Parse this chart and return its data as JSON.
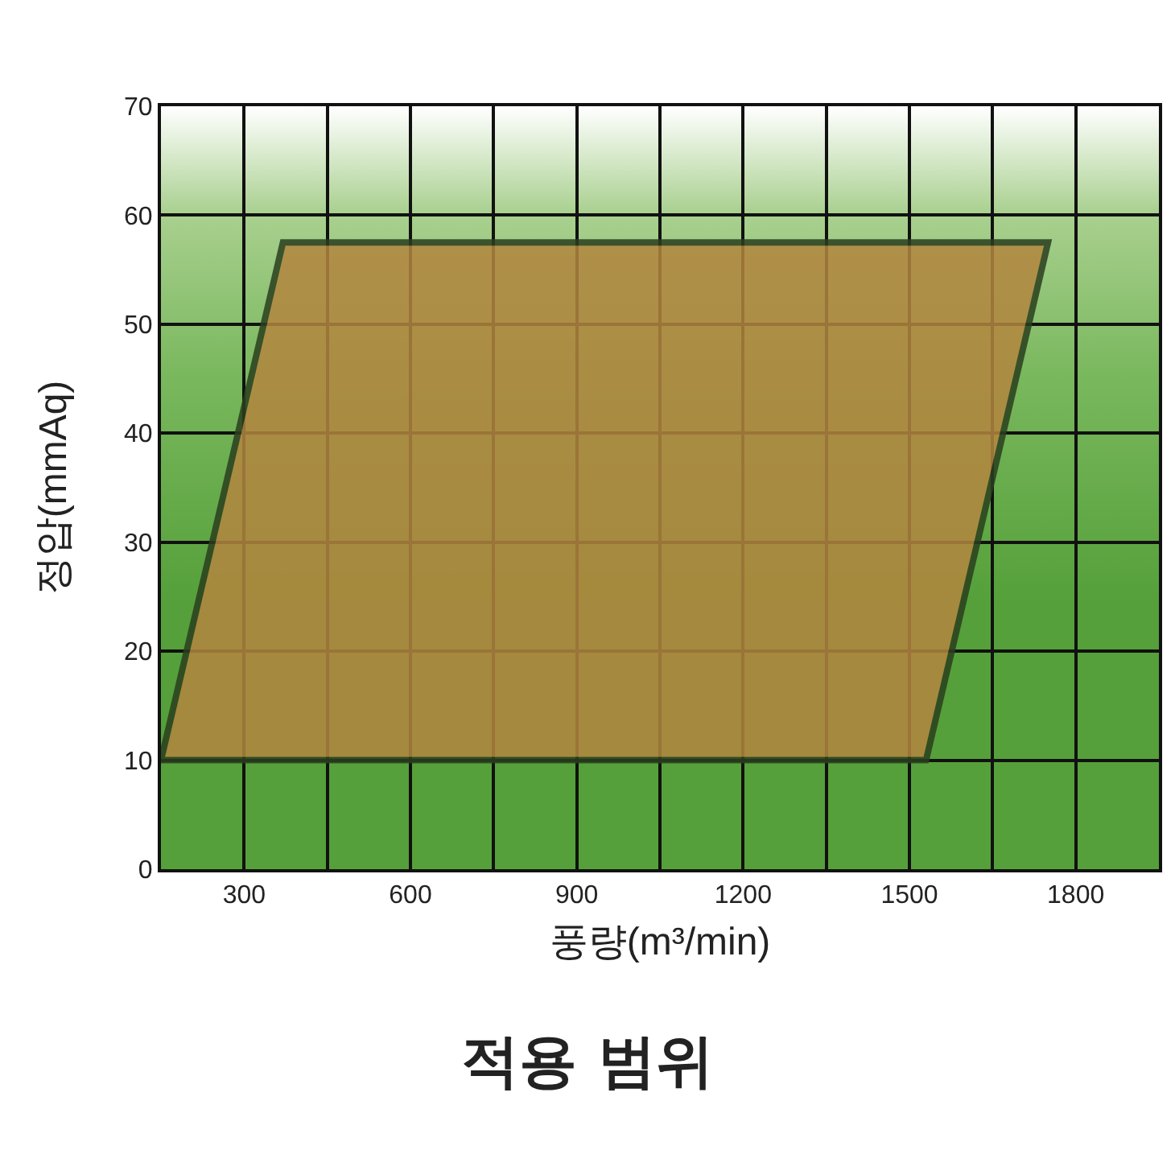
{
  "chart_data": {
    "type": "area",
    "title": "적용 범위",
    "xlabel": "풍량(m³/min)",
    "ylabel": "정압(mmAq)",
    "series": [
      {
        "color": "#b3863f",
        "x": [
          150,
          370,
          1750,
          1530,
          150
        ],
        "values": [
          10,
          57.5,
          57.5,
          10,
          10
        ]
      }
    ],
    "xlim": [
      150,
      1950
    ],
    "xticks": [
      {
        "value": 150,
        "label": null
      },
      300,
      {
        "value": 450,
        "label": null
      },
      600,
      {
        "value": 750,
        "label": null
      },
      900,
      {
        "value": 1050,
        "label": null
      },
      1200,
      {
        "value": 1350,
        "label": null
      },
      1500,
      {
        "value": 1650,
        "label": null
      },
      1800,
      {
        "value": 1950,
        "label": null
      }
    ],
    "ylim": [
      0,
      70
    ],
    "yticks": [
      0,
      10,
      20,
      30,
      40,
      50,
      60,
      70
    ],
    "grid": true
  }
}
